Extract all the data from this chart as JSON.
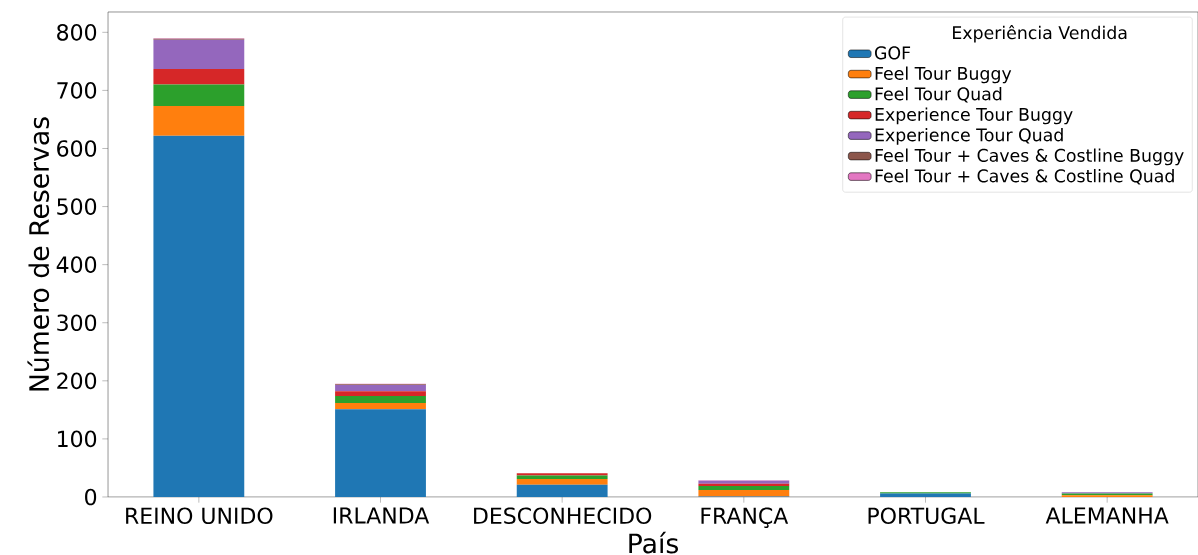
{
  "chart_data": {
    "type": "bar",
    "stacked": true,
    "xlabel": "País",
    "ylabel": "Número de Reservas",
    "legend_title": "Experiência Vendida",
    "legend": "top right",
    "categories": [
      "REINO UNIDO",
      "IRLANDA",
      "DESCONHECIDO",
      "FRANÇA",
      "PORTUGAL",
      "ALEMANHA"
    ],
    "series": [
      {
        "name": "GOF",
        "color": "#1f77b4",
        "values": [
          622,
          151,
          21,
          1,
          6,
          0
        ]
      },
      {
        "name": "Feel Tour Buggy",
        "color": "#ff7f0e",
        "values": [
          51,
          11,
          10,
          11,
          null,
          3
        ]
      },
      {
        "name": "Feel Tour Quad",
        "color": "#2ca02c",
        "values": [
          37,
          12,
          6,
          7,
          2,
          3
        ]
      },
      {
        "name": "Experience Tour Buggy",
        "color": "#d62728",
        "values": [
          27,
          8,
          4,
          4,
          null,
          0
        ]
      },
      {
        "name": "Experience Tour Quad",
        "color": "#9467bd",
        "values": [
          50,
          11,
          null,
          5,
          0,
          2
        ]
      },
      {
        "name": "Feel Tour + Caves & Costline Buggy",
        "color": "#8c564b",
        "values": [
          2,
          1,
          0,
          0,
          0,
          0
        ]
      },
      {
        "name": "Feel Tour + Caves & Costline Quad",
        "color": "#e377c2",
        "values": [
          1,
          1,
          0,
          1,
          0,
          0
        ]
      }
    ],
    "ylim": [
      0,
      835
    ],
    "yticks": [
      0,
      100,
      200,
      300,
      400,
      500,
      600,
      700,
      800
    ]
  }
}
